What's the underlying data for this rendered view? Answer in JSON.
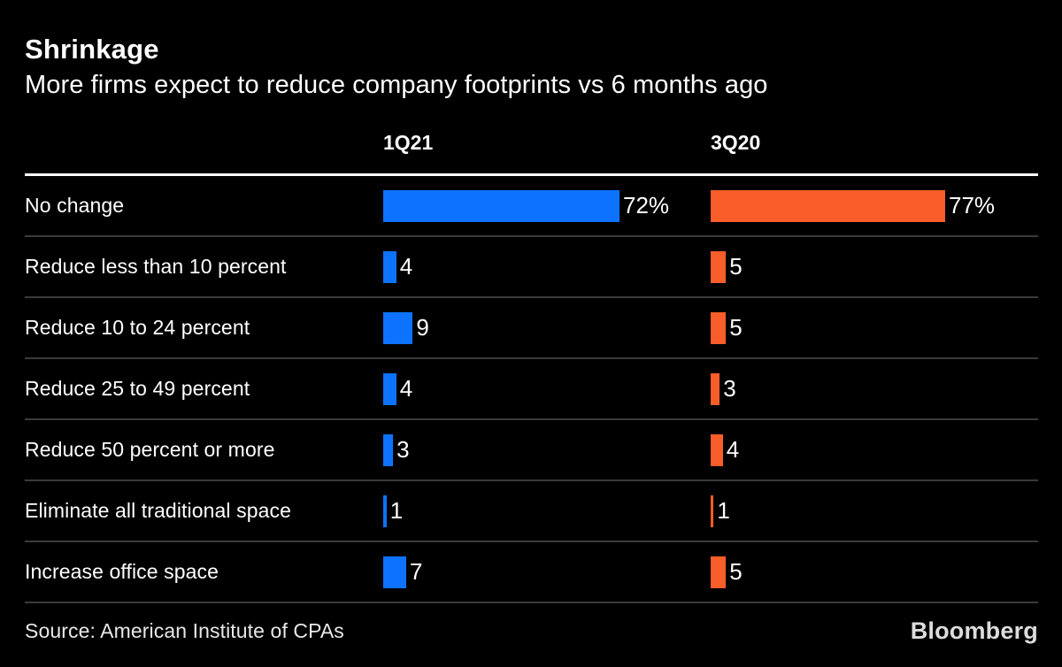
{
  "colors": {
    "background": "#000000",
    "bar_blue": "#0d73ff",
    "bar_orange": "#f95d2a",
    "header_rule": "#ffffff",
    "row_divider": "#3b3b3b",
    "text_primary": "#ffffff",
    "text_muted": "#e8e8e8"
  },
  "header": {
    "title": "Shrinkage",
    "subtitle": "More firms expect to reduce company footprints vs 6 months ago"
  },
  "chart_data": {
    "type": "bar",
    "orientation": "horizontal",
    "title": "Shrinkage",
    "subtitle": "More firms expect to reduce company footprints vs 6 months ago",
    "categories": [
      "No change",
      "Reduce less than 10 percent",
      "Reduce 10 to 24 percent",
      "Reduce 25 to 49 percent",
      "Reduce 50 percent or more",
      "Eliminate all traditional space",
      "Increase office space"
    ],
    "series": [
      {
        "name": "1Q21",
        "color": "#0d73ff",
        "values": [
          72,
          4,
          9,
          4,
          3,
          1,
          7
        ],
        "value_labels": [
          "72%",
          "4",
          "9",
          "4",
          "3",
          "1",
          "7"
        ]
      },
      {
        "name": "3Q20",
        "color": "#f95d2a",
        "values": [
          77,
          5,
          5,
          3,
          4,
          1,
          5
        ],
        "value_labels": [
          "77%",
          "5",
          "5",
          "3",
          "4",
          "1",
          "5"
        ]
      }
    ],
    "legend_position": "column-headers-top",
    "grid": "off",
    "value_axis_hidden": true
  },
  "footer": {
    "source": "Source: American Institute of CPAs",
    "brand": "Bloomberg"
  }
}
